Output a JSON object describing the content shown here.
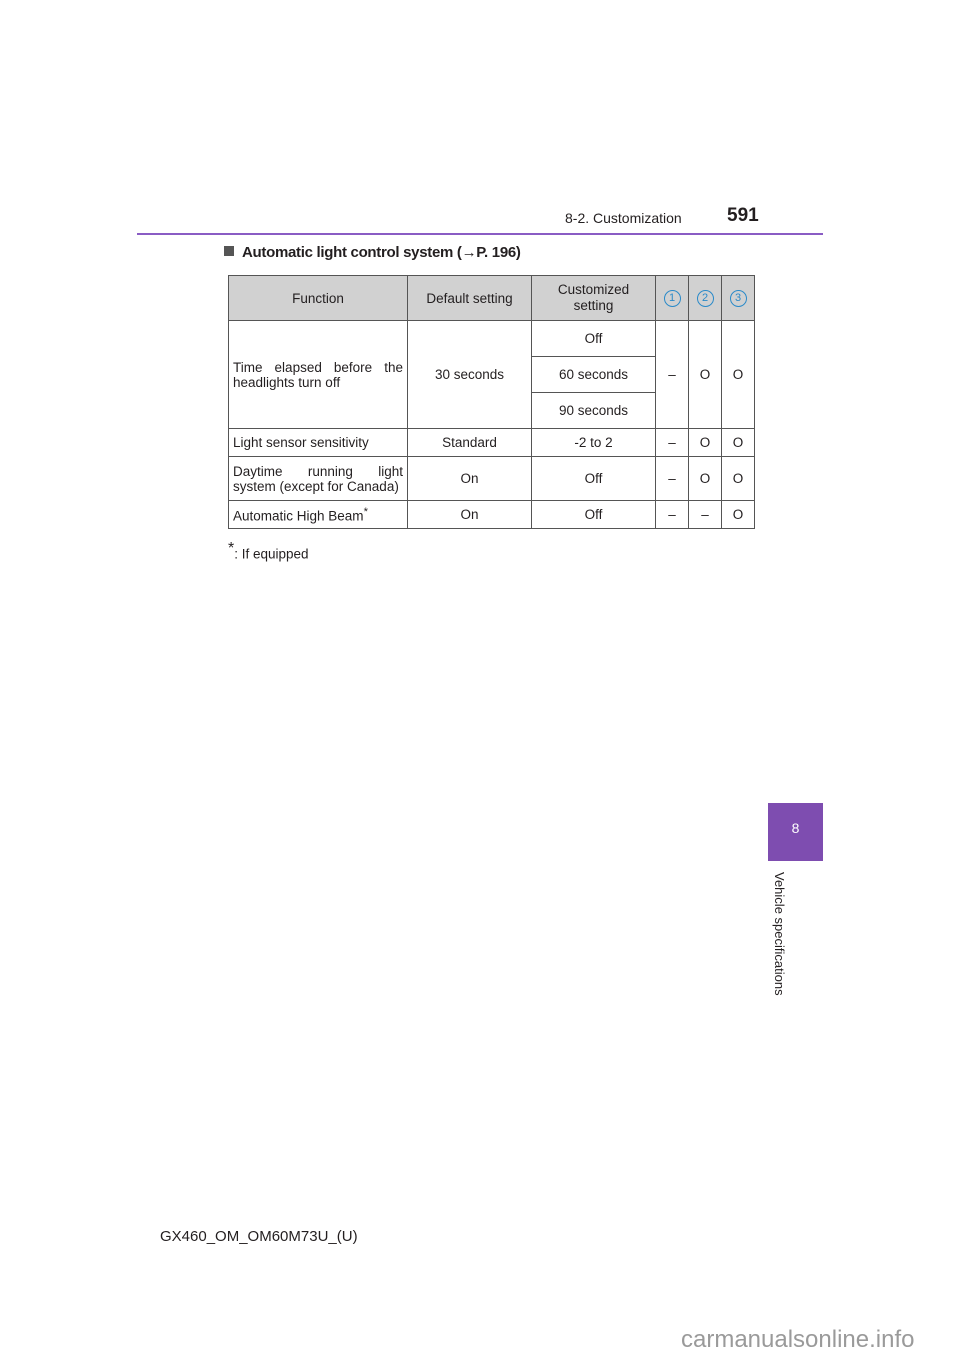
{
  "header": {
    "section": "8-2. Customization",
    "page": "591"
  },
  "heading": "Automatic light control system (→P. 196)",
  "table": {
    "headers": [
      "Function",
      "Default setting",
      "Customized setting",
      "1",
      "2",
      "3"
    ],
    "rows": [
      {
        "function": "Time elapsed before the headlights turn off",
        "default": "30 seconds",
        "custom": [
          "Off",
          "60 seconds",
          "90 seconds"
        ],
        "m1": "–",
        "m2": "O",
        "m3": "O"
      },
      {
        "function": "Light sensor sensitivity",
        "default": "Standard",
        "custom": [
          "-2 to 2"
        ],
        "m1": "–",
        "m2": "O",
        "m3": "O"
      },
      {
        "function": "Daytime running light system (except for Canada)",
        "default": "On",
        "custom": [
          "Off"
        ],
        "m1": "–",
        "m2": "O",
        "m3": "O"
      },
      {
        "function": "Automatic High Beam",
        "function_mark": "*",
        "default": "On",
        "custom": [
          "Off"
        ],
        "m1": "–",
        "m2": "–",
        "m3": "O"
      }
    ]
  },
  "footnote": {
    "mark": "*",
    "text": ": If equipped"
  },
  "side_tab": {
    "number": "8",
    "label": "Vehicle specifications"
  },
  "footer": "GX460_OM_OM60M73U_(U)",
  "watermark": "carmanualsonline.info"
}
